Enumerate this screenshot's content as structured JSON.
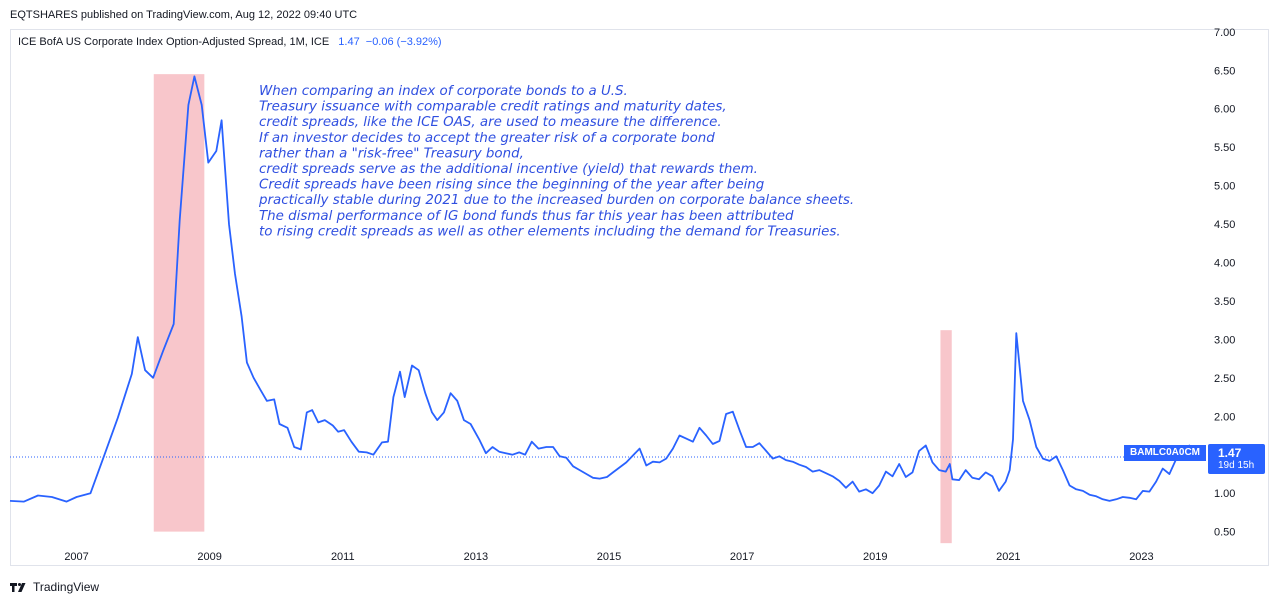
{
  "header": {
    "publisher": "EQTSHARES published on TradingView.com, Aug 12, 2022 09:40 UTC"
  },
  "legend": {
    "title": "ICE BofA US Corporate Index Option-Adjusted Spread, 1M, ICE",
    "last": "1.47",
    "change": "−0.06 (−3.92%)"
  },
  "price_tag": {
    "symbol": "BAMLC0A0CM",
    "price": "1.47",
    "countdown": "19d 15h"
  },
  "brand": {
    "name": "TradingView"
  },
  "colors": {
    "line": "#2962ff",
    "recession": "#f8c6cb",
    "annotation": "#2f4fe0"
  },
  "annotation": [
    "When comparing an index of corporate bonds to a U.S.",
    "Treasury issuance with comparable credit ratings and maturity dates,",
    "credit spreads, like the ICE OAS, are used to measure the difference.",
    "If an investor decides to accept the greater risk of a corporate bond",
    "rather than a \"risk-free\" Treasury bond,",
    "credit spreads serve as the additional incentive (yield) that rewards them.",
    "Credit spreads have been rising since the beginning of the year after being",
    "practically stable during 2021 due to the increased burden on corporate balance sheets.",
    "The dismal performance of IG bond funds thus far this year has been attributed",
    "to rising credit spreads as well as other elements including the demand for Treasuries."
  ],
  "chart_data": {
    "type": "line",
    "title": "ICE BofA US Corporate Index Option-Adjusted Spread, 1M, ICE",
    "xlabel": "",
    "ylabel": "",
    "x_ticks": [
      "2007",
      "2009",
      "2011",
      "2013",
      "2015",
      "2017",
      "2019",
      "2021",
      "2023"
    ],
    "y_ticks": [
      "0.50",
      "1.00",
      "1.50",
      "2.00",
      "2.50",
      "3.00",
      "3.50",
      "4.00",
      "4.50",
      "5.00",
      "5.50",
      "6.00",
      "6.50",
      "7.00"
    ],
    "xlim": [
      2006.0,
      2024.0
    ],
    "ylim": [
      0.3,
      7.05
    ],
    "current_value": 1.47,
    "grid": false,
    "shaded_regions": [
      {
        "from": 2008.16,
        "to": 2008.92,
        "ymin": 0.5,
        "ymax": 6.45
      },
      {
        "from": 2019.98,
        "to": 2020.15,
        "ymin": 0.35,
        "ymax": 3.12
      }
    ],
    "series": [
      {
        "values": [
          [
            2006.0,
            0.9
          ],
          [
            2006.21,
            0.89
          ],
          [
            2006.42,
            0.97
          ],
          [
            2006.63,
            0.95
          ],
          [
            2006.85,
            0.89
          ],
          [
            2007.0,
            0.95
          ],
          [
            2007.21,
            1.0
          ],
          [
            2007.42,
            1.5
          ],
          [
            2007.62,
            1.98
          ],
          [
            2007.83,
            2.55
          ],
          [
            2007.92,
            3.03
          ],
          [
            2008.03,
            2.6
          ],
          [
            2008.15,
            2.5
          ],
          [
            2008.3,
            2.85
          ],
          [
            2008.46,
            3.2
          ],
          [
            2008.55,
            4.55
          ],
          [
            2008.68,
            6.05
          ],
          [
            2008.77,
            6.42
          ],
          [
            2008.88,
            6.05
          ],
          [
            2008.98,
            5.3
          ],
          [
            2009.1,
            5.45
          ],
          [
            2009.18,
            5.85
          ],
          [
            2009.29,
            4.5
          ],
          [
            2009.38,
            3.85
          ],
          [
            2009.48,
            3.3
          ],
          [
            2009.56,
            2.7
          ],
          [
            2009.66,
            2.5
          ],
          [
            2009.76,
            2.35
          ],
          [
            2009.86,
            2.2
          ],
          [
            2009.97,
            2.22
          ],
          [
            2010.05,
            1.9
          ],
          [
            2010.17,
            1.85
          ],
          [
            2010.27,
            1.6
          ],
          [
            2010.37,
            1.57
          ],
          [
            2010.46,
            2.05
          ],
          [
            2010.54,
            2.08
          ],
          [
            2010.63,
            1.92
          ],
          [
            2010.73,
            1.95
          ],
          [
            2010.85,
            1.88
          ],
          [
            2010.93,
            1.8
          ],
          [
            2011.02,
            1.82
          ],
          [
            2011.13,
            1.67
          ],
          [
            2011.24,
            1.54
          ],
          [
            2011.36,
            1.53
          ],
          [
            2011.46,
            1.5
          ],
          [
            2011.59,
            1.66
          ],
          [
            2011.68,
            1.67
          ],
          [
            2011.76,
            2.25
          ],
          [
            2011.86,
            2.58
          ],
          [
            2011.93,
            2.25
          ],
          [
            2012.04,
            2.66
          ],
          [
            2012.14,
            2.6
          ],
          [
            2012.24,
            2.3
          ],
          [
            2012.34,
            2.05
          ],
          [
            2012.42,
            1.95
          ],
          [
            2012.52,
            2.05
          ],
          [
            2012.62,
            2.3
          ],
          [
            2012.72,
            2.2
          ],
          [
            2012.82,
            1.95
          ],
          [
            2012.92,
            1.9
          ],
          [
            2013.05,
            1.7
          ],
          [
            2013.15,
            1.52
          ],
          [
            2013.25,
            1.6
          ],
          [
            2013.35,
            1.54
          ],
          [
            2013.45,
            1.52
          ],
          [
            2013.55,
            1.5
          ],
          [
            2013.65,
            1.53
          ],
          [
            2013.74,
            1.5
          ],
          [
            2013.84,
            1.67
          ],
          [
            2013.94,
            1.58
          ],
          [
            2014.06,
            1.6
          ],
          [
            2014.16,
            1.6
          ],
          [
            2014.26,
            1.48
          ],
          [
            2014.36,
            1.46
          ],
          [
            2014.46,
            1.35
          ],
          [
            2014.56,
            1.3
          ],
          [
            2014.66,
            1.25
          ],
          [
            2014.76,
            1.2
          ],
          [
            2014.86,
            1.19
          ],
          [
            2014.97,
            1.21
          ],
          [
            2015.06,
            1.27
          ],
          [
            2015.26,
            1.4
          ],
          [
            2015.46,
            1.58
          ],
          [
            2015.56,
            1.36
          ],
          [
            2015.66,
            1.41
          ],
          [
            2015.76,
            1.4
          ],
          [
            2015.86,
            1.45
          ],
          [
            2015.96,
            1.58
          ],
          [
            2016.06,
            1.75
          ],
          [
            2016.16,
            1.71
          ],
          [
            2016.26,
            1.67
          ],
          [
            2016.36,
            1.85
          ],
          [
            2016.46,
            1.75
          ],
          [
            2016.56,
            1.64
          ],
          [
            2016.66,
            1.68
          ],
          [
            2016.76,
            2.03
          ],
          [
            2016.86,
            2.06
          ],
          [
            2016.97,
            1.8
          ],
          [
            2017.06,
            1.6
          ],
          [
            2017.16,
            1.6
          ],
          [
            2017.26,
            1.65
          ],
          [
            2017.36,
            1.55
          ],
          [
            2017.46,
            1.45
          ],
          [
            2017.56,
            1.48
          ],
          [
            2017.66,
            1.43
          ],
          [
            2017.76,
            1.41
          ],
          [
            2017.86,
            1.37
          ],
          [
            2017.96,
            1.34
          ],
          [
            2018.06,
            1.28
          ],
          [
            2018.16,
            1.3
          ],
          [
            2018.26,
            1.26
          ],
          [
            2018.36,
            1.22
          ],
          [
            2018.46,
            1.16
          ],
          [
            2018.56,
            1.07
          ],
          [
            2018.66,
            1.15
          ],
          [
            2018.76,
            1.02
          ],
          [
            2018.86,
            1.05
          ],
          [
            2018.96,
            1.0
          ],
          [
            2019.06,
            1.1
          ],
          [
            2019.16,
            1.28
          ],
          [
            2019.26,
            1.22
          ],
          [
            2019.36,
            1.38
          ],
          [
            2019.46,
            1.21
          ],
          [
            2019.56,
            1.27
          ],
          [
            2019.66,
            1.55
          ],
          [
            2019.76,
            1.62
          ],
          [
            2019.86,
            1.4
          ],
          [
            2019.96,
            1.3
          ],
          [
            2020.06,
            1.28
          ],
          [
            2020.12,
            1.38
          ],
          [
            2020.16,
            1.18
          ],
          [
            2020.26,
            1.17
          ],
          [
            2020.36,
            1.3
          ],
          [
            2020.46,
            1.2
          ],
          [
            2020.56,
            1.18
          ],
          [
            2020.66,
            1.27
          ],
          [
            2020.76,
            1.22
          ],
          [
            2020.86,
            1.03
          ],
          [
            2020.96,
            1.15
          ],
          [
            2021.02,
            1.3
          ],
          [
            2021.07,
            1.7
          ],
          [
            2021.12,
            3.08
          ],
          [
            2021.22,
            2.2
          ],
          [
            2021.32,
            1.95
          ],
          [
            2021.42,
            1.6
          ],
          [
            2021.52,
            1.45
          ],
          [
            2021.62,
            1.42
          ],
          [
            2021.72,
            1.48
          ],
          [
            2021.82,
            1.3
          ],
          [
            2021.92,
            1.1
          ],
          [
            2022.02,
            1.05
          ],
          [
            2022.12,
            1.03
          ],
          [
            2022.22,
            0.98
          ],
          [
            2022.32,
            0.96
          ],
          [
            2022.42,
            0.92
          ],
          [
            2022.52,
            0.9
          ],
          [
            2022.62,
            0.92
          ],
          [
            2022.72,
            0.95
          ],
          [
            2022.82,
            0.94
          ],
          [
            2022.92,
            0.92
          ],
          [
            2023.02,
            1.03
          ],
          [
            2023.12,
            1.02
          ],
          [
            2023.22,
            1.15
          ],
          [
            2023.32,
            1.32
          ],
          [
            2023.42,
            1.25
          ],
          [
            2023.52,
            1.44
          ],
          [
            2023.62,
            1.43
          ],
          [
            2023.72,
            1.62
          ],
          [
            2023.82,
            1.53
          ],
          [
            2023.92,
            1.47
          ]
        ]
      }
    ]
  }
}
